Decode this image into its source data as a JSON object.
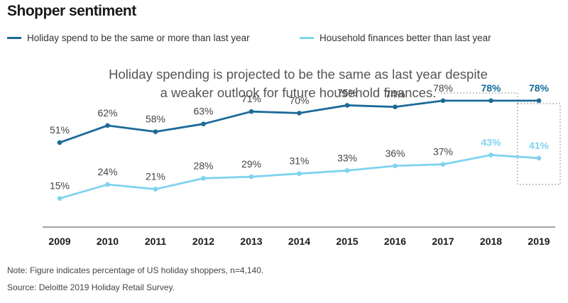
{
  "header": {
    "title": "Shopper sentiment"
  },
  "annotation": {
    "line1": "Holiday spending is projected to be the same as last year despite",
    "line2": "a weaker outlook for future household finances."
  },
  "colors": {
    "series1": "#1a6a99",
    "series2": "#7fd3ef",
    "axis": "#444444",
    "highlight_box": "#888888"
  },
  "chart_data": {
    "type": "line",
    "title": "Shopper sentiment",
    "x": [
      "2009",
      "2010",
      "2011",
      "2012",
      "2013",
      "2014",
      "2015",
      "2016",
      "2017",
      "2018",
      "2019"
    ],
    "series": [
      {
        "name": "Holiday spend to be the same or more than last year",
        "values": [
          51,
          62,
          58,
          63,
          71,
          70,
          75,
          74,
          78,
          78,
          78
        ],
        "labels": [
          "51%",
          "62%",
          "58%",
          "63%",
          "71%",
          "70%",
          "75%",
          "74%",
          "78%",
          "78%",
          "78%"
        ],
        "color": "#1a6a99"
      },
      {
        "name": "Household finances better than last year",
        "values": [
          15,
          24,
          21,
          28,
          29,
          31,
          33,
          36,
          37,
          43,
          41
        ],
        "labels": [
          "15%",
          "24%",
          "21%",
          "28%",
          "29%",
          "31%",
          "33%",
          "36%",
          "37%",
          "43%",
          "41%"
        ],
        "color": "#7fd3ef"
      }
    ],
    "bold_labels_from": "2018",
    "highlighted_category": "2019",
    "xlabel": "",
    "ylabel": "",
    "grid": false,
    "legend": "top-left"
  },
  "footer": {
    "note": "Note: Figure indicates percentage of US holiday shoppers, n=4,140.",
    "source": "Source: Deloitte 2019 Holiday Retail Survey."
  }
}
